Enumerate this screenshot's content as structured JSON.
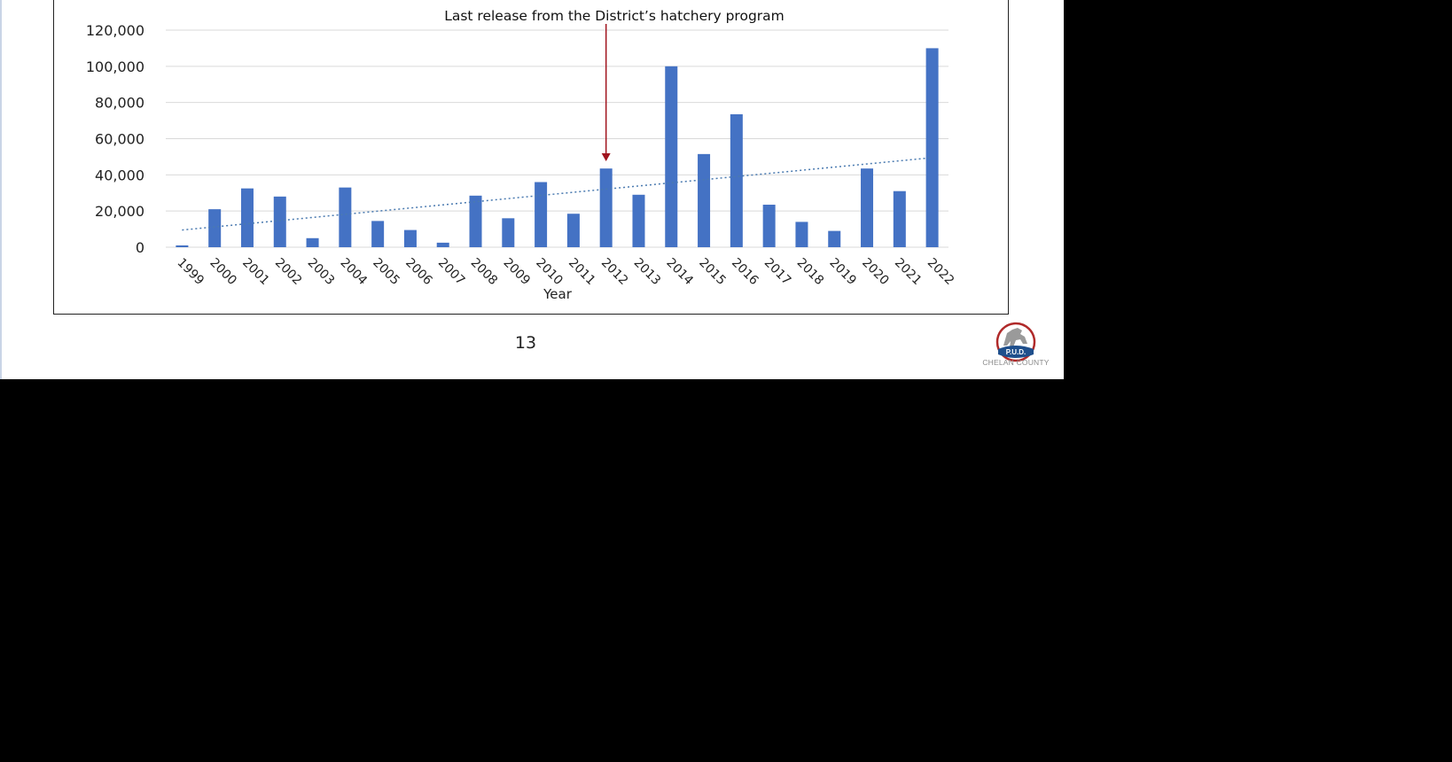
{
  "slide": {
    "page_number": "13",
    "logo_badge": "P.U.D.",
    "logo_caption": "CHELAN COUNTY"
  },
  "chart_data": {
    "type": "bar",
    "title": "",
    "xlabel": "Year",
    "ylabel": "",
    "ylim": [
      0,
      120000
    ],
    "yticks": [
      0,
      20000,
      40000,
      60000,
      80000,
      100000,
      120000
    ],
    "ytick_labels": [
      "0",
      "20,000",
      "40,000",
      "60,000",
      "80,000",
      "100,000",
      "120,000"
    ],
    "categories": [
      "1999",
      "2000",
      "2001",
      "2002",
      "2003",
      "2004",
      "2005",
      "2006",
      "2007",
      "2008",
      "2009",
      "2010",
      "2011",
      "2012",
      "2013",
      "2014",
      "2015",
      "2016",
      "2017",
      "2018",
      "2019",
      "2020",
      "2021",
      "2022"
    ],
    "values": [
      1000,
      21000,
      32500,
      28000,
      5000,
      33000,
      14500,
      9500,
      2500,
      28500,
      16000,
      36000,
      18500,
      43500,
      29000,
      100000,
      51500,
      73500,
      23500,
      14000,
      9000,
      43500,
      31000,
      110000
    ],
    "bar_color": "#4472c4",
    "trendline": {
      "type": "linear",
      "start": 9500,
      "end": 49500,
      "color": "#4a7ab0",
      "style": "dotted"
    },
    "grid": true,
    "legend": "none",
    "annotation": {
      "text": "Last release from the District’s hatchery program",
      "category": "2012",
      "arrow_color": "#a0141e"
    }
  }
}
